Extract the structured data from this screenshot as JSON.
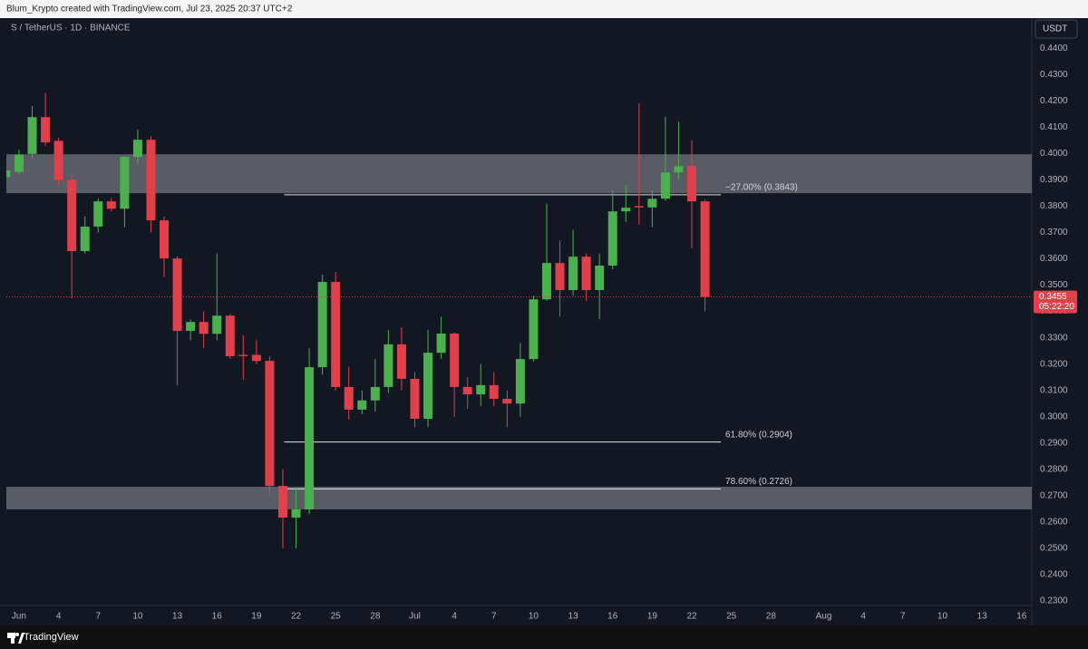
{
  "chart_data": {
    "type": "candlestick",
    "credit": "Blum_Krypto created with TradingView.com, Jul 23, 2025 20:37 UTC+2",
    "title": "S / TetherUS · 1D · BINANCE",
    "currency": "USDT",
    "branding": "TradingView",
    "up_color": "#4caf50",
    "down_color": "#e0404c",
    "zone_color": "#5d6069",
    "x": [
      -1,
      0,
      1,
      2,
      3,
      4,
      5,
      6,
      7,
      8,
      9,
      10,
      11,
      12,
      13,
      14,
      15,
      16,
      17,
      18,
      19,
      20,
      21,
      22,
      23,
      24,
      25,
      26,
      27,
      28,
      29,
      30,
      31,
      32,
      33,
      34,
      35,
      36,
      37,
      38,
      39,
      40,
      41,
      42,
      43,
      44,
      45,
      46,
      47,
      48,
      49,
      50,
      51,
      52
    ],
    "open": [
      0.391,
      0.393,
      0.3998,
      0.4138,
      0.4048,
      0.39,
      0.3629,
      0.3722,
      0.3818,
      0.379,
      0.3987,
      0.4052,
      0.3746,
      0.3601,
      0.3326,
      0.336,
      0.3315,
      0.3384,
      0.3235,
      0.3235,
      0.3212,
      0.2737,
      0.2617,
      0.2648,
      0.3188,
      0.3512,
      0.3113,
      0.3027,
      0.3062,
      0.3113,
      0.3275,
      0.3144,
      0.2992,
      0.3243,
      0.3316,
      0.3113,
      0.3085,
      0.312,
      0.3068,
      0.305,
      0.3219,
      0.3446,
      0.3584,
      0.3481,
      0.3608,
      0.3481,
      0.3574,
      0.378,
      0.38,
      0.3795,
      0.3828,
      0.3928,
      0.3952,
      0.3818
    ],
    "high": [
      0.3995,
      0.4015,
      0.418,
      0.423,
      0.406,
      0.392,
      0.376,
      0.383,
      0.383,
      0.399,
      0.409,
      0.4065,
      0.376,
      0.361,
      0.337,
      0.34,
      0.362,
      0.339,
      0.331,
      0.329,
      0.323,
      0.28,
      0.273,
      0.326,
      0.354,
      0.355,
      0.319,
      0.31,
      0.322,
      0.333,
      0.334,
      0.317,
      0.333,
      0.338,
      0.332,
      0.315,
      0.32,
      0.317,
      0.31,
      0.328,
      0.346,
      0.381,
      0.367,
      0.371,
      0.362,
      0.362,
      0.386,
      0.388,
      0.419,
      0.386,
      0.414,
      0.412,
      0.405,
      0.3825
    ],
    "low": [
      0.3775,
      0.392,
      0.398,
      0.403,
      0.388,
      0.345,
      0.362,
      0.37,
      0.378,
      0.372,
      0.396,
      0.37,
      0.353,
      0.312,
      0.329,
      0.326,
      0.329,
      0.322,
      0.314,
      0.32,
      0.27,
      0.25,
      0.25,
      0.263,
      0.316,
      0.31,
      0.299,
      0.301,
      0.302,
      0.309,
      0.31,
      0.296,
      0.296,
      0.322,
      0.3,
      0.303,
      0.304,
      0.304,
      0.296,
      0.3,
      0.321,
      0.344,
      0.338,
      0.346,
      0.344,
      0.337,
      0.356,
      0.374,
      0.373,
      0.372,
      0.382,
      0.39,
      0.364,
      0.34
    ],
    "close": [
      0.3935,
      0.3995,
      0.4138,
      0.4042,
      0.39,
      0.3629,
      0.3722,
      0.3818,
      0.379,
      0.3987,
      0.4052,
      0.3746,
      0.3601,
      0.3326,
      0.336,
      0.3315,
      0.3384,
      0.323,
      0.323,
      0.3212,
      0.2737,
      0.2617,
      0.2648,
      0.3188,
      0.3512,
      0.3113,
      0.3027,
      0.3062,
      0.3113,
      0.3275,
      0.3144,
      0.2992,
      0.3243,
      0.3316,
      0.3113,
      0.3085,
      0.312,
      0.3068,
      0.305,
      0.3219,
      0.3446,
      0.3584,
      0.3481,
      0.3608,
      0.3481,
      0.3574,
      0.378,
      0.3794,
      0.3795,
      0.3828,
      0.3928,
      0.3952,
      0.3818,
      0.3455
    ],
    "xlim": [
      -0.96,
      76.77
    ],
    "xticks": [
      {
        "value": 0,
        "label": "Jun"
      },
      {
        "value": 3,
        "label": "4"
      },
      {
        "value": 6,
        "label": "7"
      },
      {
        "value": 9,
        "label": "10"
      },
      {
        "value": 12,
        "label": "13"
      },
      {
        "value": 15,
        "label": "16"
      },
      {
        "value": 18,
        "label": "19"
      },
      {
        "value": 21,
        "label": "22"
      },
      {
        "value": 24,
        "label": "25"
      },
      {
        "value": 27,
        "label": "28"
      },
      {
        "value": 30,
        "label": "Jul"
      },
      {
        "value": 33,
        "label": "4"
      },
      {
        "value": 36,
        "label": "7"
      },
      {
        "value": 39,
        "label": "10"
      },
      {
        "value": 42,
        "label": "13"
      },
      {
        "value": 45,
        "label": "16"
      },
      {
        "value": 48,
        "label": "19"
      },
      {
        "value": 51,
        "label": "22"
      },
      {
        "value": 54,
        "label": "25"
      },
      {
        "value": 57,
        "label": "28"
      },
      {
        "value": 61,
        "label": "Aug"
      },
      {
        "value": 64,
        "label": "4"
      },
      {
        "value": 67,
        "label": "7"
      },
      {
        "value": 70,
        "label": "10"
      },
      {
        "value": 73,
        "label": "13"
      },
      {
        "value": 76,
        "label": "16"
      }
    ],
    "ylim": [
      0.2283,
      0.4514
    ],
    "yticks": [
      {
        "value": 0.23,
        "label": "0.2300"
      },
      {
        "value": 0.24,
        "label": "0.2400"
      },
      {
        "value": 0.25,
        "label": "0.2500"
      },
      {
        "value": 0.26,
        "label": "0.2600"
      },
      {
        "value": 0.27,
        "label": "0.2700"
      },
      {
        "value": 0.28,
        "label": "0.2800"
      },
      {
        "value": 0.29,
        "label": "0.2900"
      },
      {
        "value": 0.3,
        "label": "0.3000"
      },
      {
        "value": 0.31,
        "label": "0.3100"
      },
      {
        "value": 0.32,
        "label": "0.3200"
      },
      {
        "value": 0.33,
        "label": "0.3300"
      },
      {
        "value": 0.34,
        "label": "0.3400"
      },
      {
        "value": 0.35,
        "label": "0.3500"
      },
      {
        "value": 0.36,
        "label": "0.3600"
      },
      {
        "value": 0.37,
        "label": "0.3700"
      },
      {
        "value": 0.38,
        "label": "0.3800"
      },
      {
        "value": 0.39,
        "label": "0.3900"
      },
      {
        "value": 0.4,
        "label": "0.4000"
      },
      {
        "value": 0.41,
        "label": "0.4100"
      },
      {
        "value": 0.42,
        "label": "0.4200"
      },
      {
        "value": 0.43,
        "label": "0.4300"
      },
      {
        "value": 0.44,
        "label": "0.4400"
      }
    ],
    "grid": false,
    "zones": [
      {
        "low": 0.3849,
        "high": 0.3997
      },
      {
        "low": 0.2648,
        "high": 0.2734
      }
    ],
    "levels": [
      {
        "value": 0.3843,
        "label": "−27.00% (0.3843)",
        "x_range": [
          20.1,
          53.2
        ]
      },
      {
        "value": 0.2904,
        "label": "61.80% (0.2904)",
        "x_range": [
          20.1,
          53.2
        ]
      },
      {
        "value": 0.2726,
        "label": "78.60% (0.2726)",
        "x_range": [
          20.1,
          53.2
        ]
      }
    ],
    "last_price": {
      "value": 0.3455,
      "label": "0.3455",
      "countdown": "05:22:20"
    }
  }
}
